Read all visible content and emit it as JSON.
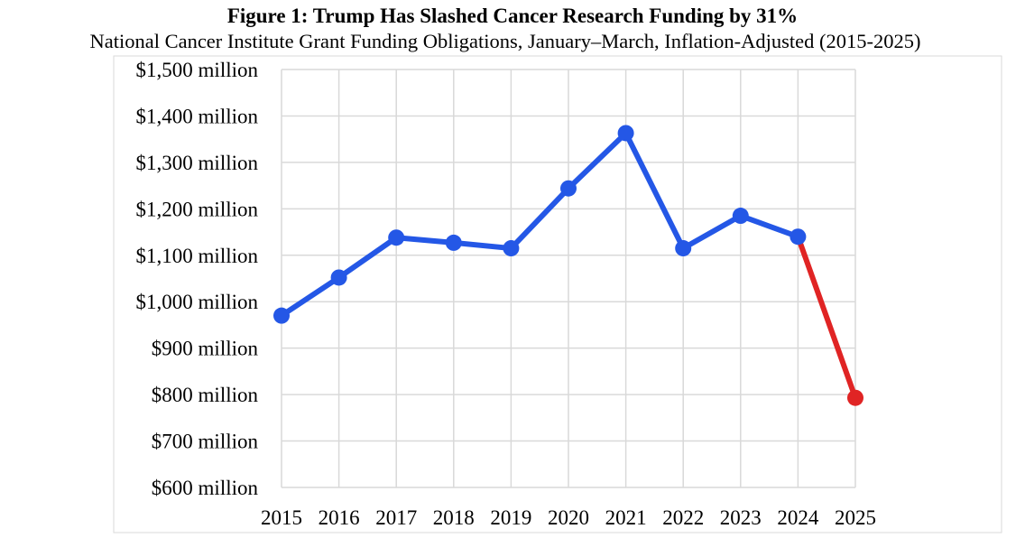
{
  "chart_data": {
    "type": "line",
    "title": "Figure 1: Trump Has Slashed Cancer Research Funding by 31%",
    "subtitle": "National Cancer Institute Grant Funding Obligations, January–March, Inflation-Adjusted (2015-2025)",
    "xlabel": "",
    "ylabel": "",
    "categories": [
      "2015",
      "2016",
      "2017",
      "2018",
      "2019",
      "2020",
      "2021",
      "2022",
      "2023",
      "2024",
      "2025"
    ],
    "values": [
      970,
      1052,
      1138,
      1127,
      1115,
      1244,
      1363,
      1115,
      1185,
      1140,
      793
    ],
    "series_colors": {
      "main": "#2457e6",
      "highlight": "#e02424"
    },
    "highlight_from_index": 9,
    "ylim": [
      600,
      1500
    ],
    "yticks": [
      {
        "value": 1500,
        "label": "$1,500 million"
      },
      {
        "value": 1400,
        "label": "$1,400 million"
      },
      {
        "value": 1300,
        "label": "$1,300 million"
      },
      {
        "value": 1200,
        "label": "$1,200 million"
      },
      {
        "value": 1100,
        "label": "$1,100 million"
      },
      {
        "value": 1000,
        "label": "$1,000 million"
      },
      {
        "value": 900,
        "label": "$900 million"
      },
      {
        "value": 800,
        "label": "$800 million"
      },
      {
        "value": 700,
        "label": "$700 million"
      },
      {
        "value": 600,
        "label": "$600 million"
      }
    ],
    "grid": true,
    "legend": "none"
  }
}
